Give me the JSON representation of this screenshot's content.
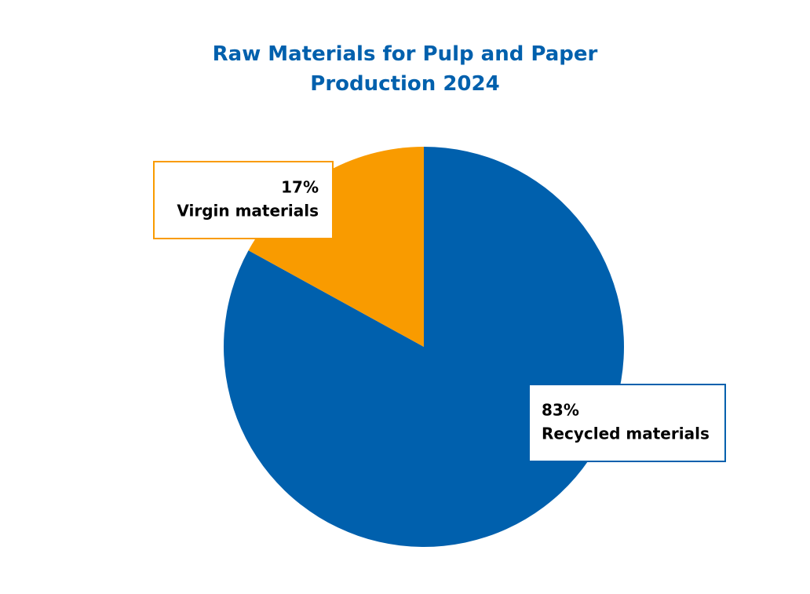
{
  "chart_data": {
    "type": "pie",
    "title": "Raw Materials for Pulp and Paper Production 2024",
    "categories": [
      "Recycled materials",
      "Virgin materials"
    ],
    "values": [
      83,
      17
    ],
    "value_labels": [
      "83%",
      "17%"
    ],
    "colors": [
      "#0060ad",
      "#f99b00"
    ]
  }
}
